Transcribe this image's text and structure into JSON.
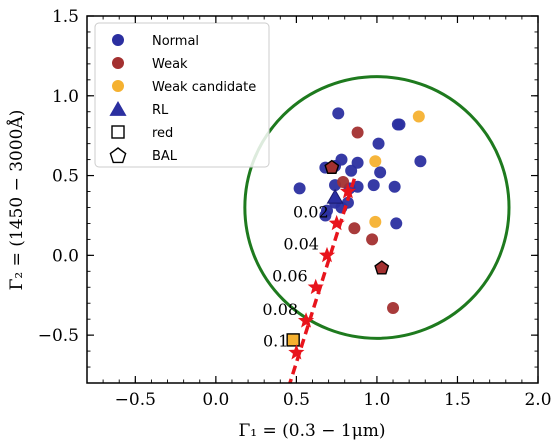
{
  "chart_data": {
    "type": "scatter",
    "xlabel": "Γ₁ = (0.3 − 1μm)",
    "ylabel": "Γ₂ = (1450 − 3000Å)",
    "xlim": [
      -0.8,
      2.0
    ],
    "ylim": [
      -0.8,
      1.5
    ],
    "x_ticks": [
      -0.5,
      0.0,
      0.5,
      1.0,
      1.5,
      2.0
    ],
    "x_tick_labels": [
      "−0.5",
      "0.0",
      "0.5",
      "1.0",
      "1.5",
      "2.0"
    ],
    "y_ticks": [
      -0.5,
      0.0,
      0.5,
      1.0,
      1.5
    ],
    "y_tick_labels": [
      "−0.5",
      "0.0",
      "0.5",
      "1.0",
      "1.5"
    ],
    "grid": false,
    "legend_position": "top-left",
    "legend": [
      {
        "label": "Normal",
        "marker": "circle",
        "color": "#2b2fa0"
      },
      {
        "label": "Weak",
        "marker": "circle",
        "color": "#a33030"
      },
      {
        "label": "Weak candidate",
        "marker": "circle",
        "color": "#f5b130"
      },
      {
        "label": "RL",
        "marker": "triangle",
        "color": "#2b2fa0"
      },
      {
        "label": "red",
        "marker": "square",
        "color": "none"
      },
      {
        "label": "BAL",
        "marker": "pentagon",
        "color": "none"
      }
    ],
    "series": [
      {
        "name": "Normal",
        "color": "#2b2fa0",
        "points": [
          [
            0.76,
            0.89
          ],
          [
            1.14,
            0.82
          ],
          [
            1.13,
            0.82
          ],
          [
            1.01,
            0.7
          ],
          [
            0.78,
            0.6
          ],
          [
            0.88,
            0.58
          ],
          [
            0.68,
            0.55
          ],
          [
            0.74,
            0.56
          ],
          [
            0.84,
            0.53
          ],
          [
            0.98,
            0.44
          ],
          [
            1.02,
            0.52
          ],
          [
            1.27,
            0.59
          ],
          [
            0.52,
            0.42
          ],
          [
            0.74,
            0.44
          ],
          [
            0.83,
            0.42
          ],
          [
            0.88,
            0.43
          ],
          [
            1.11,
            0.43
          ],
          [
            0.74,
            0.33
          ],
          [
            0.78,
            0.3
          ],
          [
            0.82,
            0.33
          ],
          [
            0.68,
            0.25
          ],
          [
            0.69,
            0.28
          ],
          [
            1.12,
            0.2
          ]
        ]
      },
      {
        "name": "Weak",
        "color": "#a33030",
        "points": [
          [
            0.88,
            0.77
          ],
          [
            0.79,
            0.46
          ],
          [
            0.86,
            0.17
          ],
          [
            0.97,
            0.1
          ],
          [
            1.1,
            -0.33
          ]
        ]
      },
      {
        "name": "Weak candidate",
        "color": "#f5b130",
        "points": [
          [
            1.26,
            0.87
          ],
          [
            0.99,
            0.59
          ],
          [
            0.99,
            0.21
          ]
        ]
      },
      {
        "name": "RL",
        "color": "#2b2fa0",
        "marker": "triangle",
        "points": [
          [
            0.74,
            0.36
          ]
        ]
      },
      {
        "name": "BAL",
        "marker": "pentagon",
        "points": [
          [
            0.72,
            0.55
          ],
          [
            1.03,
            -0.08
          ]
        ]
      },
      {
        "name": "red",
        "marker": "square",
        "color": "#f5b130",
        "points": [
          [
            0.48,
            -0.53
          ]
        ]
      }
    ],
    "reddening_track": {
      "color": "#e8141c",
      "points": [
        [
          0.82,
          0.4
        ],
        [
          0.75,
          0.2
        ],
        [
          0.69,
          0.0
        ],
        [
          0.62,
          -0.2
        ],
        [
          0.56,
          -0.41
        ],
        [
          0.5,
          -0.61
        ]
      ],
      "line_extent": [
        [
          0.86,
          0.48
        ],
        [
          0.46,
          -0.8
        ]
      ],
      "labels": [
        {
          "text": "0.02",
          "x": 0.75,
          "y": 0.2
        },
        {
          "text": "0.04",
          "x": 0.69,
          "y": 0.0
        },
        {
          "text": "0.06",
          "x": 0.62,
          "y": -0.2
        },
        {
          "text": "0.08",
          "x": 0.56,
          "y": -0.41
        },
        {
          "text": "0.1",
          "x": 0.5,
          "y": -0.61
        }
      ]
    },
    "circle": {
      "center": [
        1.0,
        0.3
      ],
      "radius": 0.82,
      "color": "#1e7a1e"
    }
  }
}
